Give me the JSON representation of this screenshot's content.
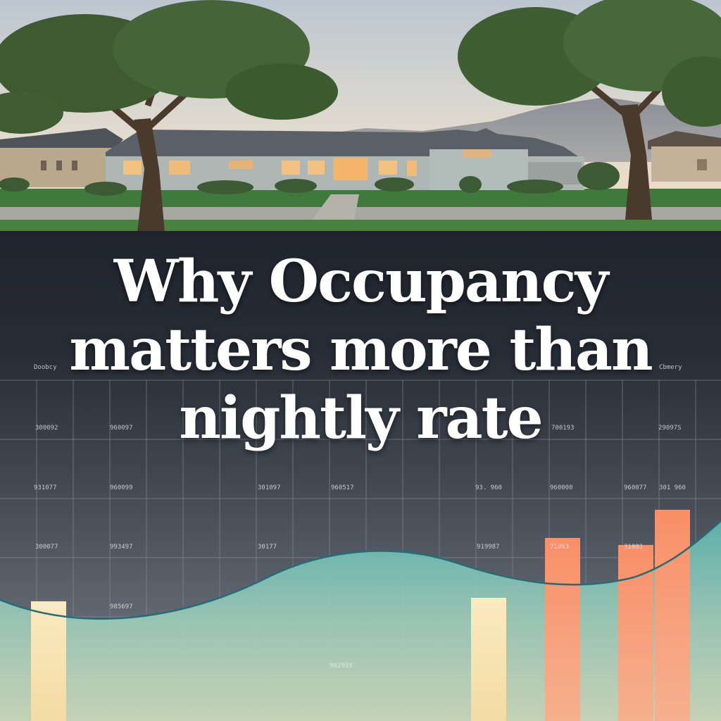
{
  "headline": {
    "line1": "Why Occupancy",
    "line2": "matters more than",
    "line3": "nightly rate"
  },
  "labels": {
    "left_header": "Doobcy",
    "right_header": "Cbmery",
    "scribbles": [
      "300092",
      "960097",
      "700193",
      "29097S",
      "931077",
      "960099",
      "301097",
      "960517",
      "93. 960",
      "960000",
      "960077",
      "301 960",
      "300077",
      "993497",
      "30177",
      "919987",
      "71093",
      "31093",
      "740107",
      "985697",
      "982939"
    ]
  },
  "colors": {
    "sky_top": "#c6cfd8",
    "sky_horizon": "#f0d9b8",
    "dark_band": "#262c36",
    "teal_curve": "#1f6f78",
    "bar_cream": "#f8e6b4",
    "bar_peach": "#f79a74"
  },
  "chart_data": {
    "type": "bar",
    "note_values_unreadable": true,
    "highlight_bars": [
      {
        "color": "cream",
        "relative_height": 0.34
      },
      {
        "color": "cream",
        "relative_height": 0.35
      },
      {
        "color": "peach",
        "relative_height": 0.52
      },
      {
        "color": "peach",
        "relative_height": 0.5
      },
      {
        "color": "peach",
        "relative_height": 0.6
      }
    ],
    "curve": "smooth wave rising toward the right"
  }
}
